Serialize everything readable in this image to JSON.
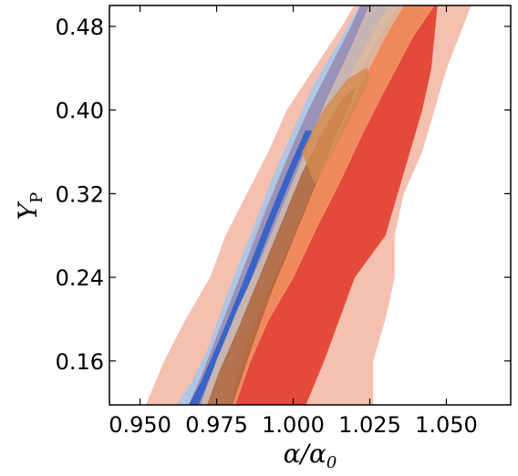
{
  "chart_data": {
    "type": "contour",
    "xlabel": "α/α",
    "xlabel_sub": "0",
    "ylabel": "Y",
    "ylabel_sub": "P",
    "xlim": [
      0.94,
      1.071
    ],
    "ylim": [
      0.118,
      0.5
    ],
    "xticks": [
      0.95,
      0.975,
      1.0,
      1.025,
      1.05
    ],
    "xtick_labels": [
      "0.950",
      "0.975",
      "1.000",
      "1.025",
      "1.050"
    ],
    "yticks": [
      0.16,
      0.24,
      0.32,
      0.4,
      0.48
    ],
    "ytick_labels": [
      "0.16",
      "0.24",
      "0.32",
      "0.40",
      "0.48"
    ],
    "grid": false,
    "series": [
      {
        "color": "#f6c0b0",
        "opacity": 1,
        "polygon": [
          [
            0.952,
            0.118
          ],
          [
            0.958,
            0.16
          ],
          [
            0.965,
            0.2
          ],
          [
            0.973,
            0.24
          ],
          [
            0.978,
            0.28
          ],
          [
            0.985,
            0.32
          ],
          [
            0.992,
            0.36
          ],
          [
            0.998,
            0.4
          ],
          [
            1.007,
            0.44
          ],
          [
            1.016,
            0.48
          ],
          [
            1.02,
            0.5
          ],
          [
            1.058,
            0.5
          ],
          [
            1.054,
            0.47
          ],
          [
            1.05,
            0.44
          ],
          [
            1.046,
            0.4
          ],
          [
            1.042,
            0.36
          ],
          [
            1.036,
            0.32
          ],
          [
            1.033,
            0.28
          ],
          [
            1.033,
            0.24
          ],
          [
            1.03,
            0.2
          ],
          [
            1.026,
            0.16
          ],
          [
            1.026,
            0.118
          ]
        ]
      },
      {
        "color": "#e44a3b",
        "opacity": 1,
        "polygon": [
          [
            0.98,
            0.118
          ],
          [
            0.981,
            0.16
          ],
          [
            0.982,
            0.2
          ],
          [
            0.984,
            0.24
          ],
          [
            0.987,
            0.28
          ],
          [
            0.993,
            0.32
          ],
          [
            0.999,
            0.36
          ],
          [
            1.006,
            0.4
          ],
          [
            1.014,
            0.44
          ],
          [
            1.022,
            0.47
          ],
          [
            1.028,
            0.5
          ],
          [
            1.047,
            0.5
          ],
          [
            1.046,
            0.47
          ],
          [
            1.045,
            0.44
          ],
          [
            1.042,
            0.4
          ],
          [
            1.038,
            0.36
          ],
          [
            1.034,
            0.32
          ],
          [
            1.03,
            0.28
          ],
          [
            1.02,
            0.24
          ],
          [
            1.015,
            0.2
          ],
          [
            1.01,
            0.16
          ],
          [
            1.004,
            0.118
          ]
        ]
      },
      {
        "color": "#aac7e6",
        "opacity": 0.92,
        "polygon": [
          [
            0.962,
            0.118
          ],
          [
            0.967,
            0.14
          ],
          [
            0.972,
            0.17
          ],
          [
            0.978,
            0.22
          ],
          [
            0.986,
            0.28
          ],
          [
            0.994,
            0.34
          ],
          [
            1.0,
            0.38
          ],
          [
            1.006,
            0.42
          ],
          [
            1.014,
            0.46
          ],
          [
            1.022,
            0.5
          ],
          [
            1.034,
            0.5
          ],
          [
            1.026,
            0.46
          ],
          [
            1.018,
            0.42
          ],
          [
            1.009,
            0.38
          ],
          [
            1.001,
            0.32
          ],
          [
            0.994,
            0.26
          ],
          [
            0.986,
            0.21
          ],
          [
            0.978,
            0.16
          ],
          [
            0.972,
            0.118
          ]
        ]
      },
      {
        "color": "#9a8fb8",
        "opacity": 0.95,
        "polygon": [
          [
            0.966,
            0.118
          ],
          [
            0.97,
            0.145
          ],
          [
            0.976,
            0.19
          ],
          [
            0.984,
            0.25
          ],
          [
            0.992,
            0.31
          ],
          [
            0.999,
            0.36
          ],
          [
            1.005,
            0.4
          ],
          [
            1.012,
            0.44
          ],
          [
            1.019,
            0.48
          ],
          [
            1.022,
            0.5
          ],
          [
            1.031,
            0.5
          ],
          [
            1.024,
            0.46
          ],
          [
            1.016,
            0.42
          ],
          [
            1.008,
            0.38
          ],
          [
            1.001,
            0.33
          ],
          [
            0.994,
            0.27
          ],
          [
            0.987,
            0.22
          ],
          [
            0.98,
            0.17
          ],
          [
            0.974,
            0.118
          ]
        ]
      },
      {
        "color": "#3a63c6",
        "opacity": 1,
        "polygon": [
          [
            0.966,
            0.118
          ],
          [
            0.97,
            0.14
          ],
          [
            0.976,
            0.18
          ],
          [
            0.983,
            0.23
          ],
          [
            0.991,
            0.29
          ],
          [
            0.998,
            0.34
          ],
          [
            1.004,
            0.38
          ],
          [
            1.006,
            0.38
          ],
          [
            1.0,
            0.34
          ],
          [
            0.993,
            0.29
          ],
          [
            0.985,
            0.23
          ],
          [
            0.978,
            0.18
          ],
          [
            0.972,
            0.14
          ],
          [
            0.969,
            0.118
          ]
        ]
      },
      {
        "color": "#f3a469",
        "opacity": 0.7,
        "polygon": [
          [
            0.972,
            0.118
          ],
          [
            0.977,
            0.15
          ],
          [
            0.984,
            0.2
          ],
          [
            0.991,
            0.25
          ],
          [
            0.999,
            0.3
          ],
          [
            1.006,
            0.35
          ],
          [
            1.013,
            0.4
          ],
          [
            1.02,
            0.44
          ],
          [
            1.027,
            0.48
          ],
          [
            1.032,
            0.5
          ],
          [
            1.046,
            0.5
          ],
          [
            1.039,
            0.47
          ],
          [
            1.03,
            0.42
          ],
          [
            1.023,
            0.38
          ],
          [
            1.015,
            0.33
          ],
          [
            1.008,
            0.29
          ],
          [
            1.0,
            0.24
          ],
          [
            0.992,
            0.2
          ],
          [
            0.986,
            0.16
          ],
          [
            0.981,
            0.118
          ]
        ]
      },
      {
        "color": "#d7bfae",
        "opacity": 0.75,
        "polygon": [
          [
            0.97,
            0.118
          ],
          [
            0.975,
            0.16
          ],
          [
            0.982,
            0.21
          ],
          [
            0.99,
            0.26
          ],
          [
            0.997,
            0.31
          ],
          [
            1.004,
            0.36
          ],
          [
            1.011,
            0.41
          ],
          [
            1.019,
            0.46
          ],
          [
            1.025,
            0.5
          ],
          [
            1.036,
            0.5
          ],
          [
            1.03,
            0.47
          ],
          [
            1.023,
            0.43
          ],
          [
            1.015,
            0.38
          ],
          [
            1.007,
            0.33
          ],
          [
            1.0,
            0.28
          ],
          [
            0.992,
            0.23
          ],
          [
            0.985,
            0.18
          ],
          [
            0.979,
            0.118
          ]
        ]
      },
      {
        "color": "#a9643c",
        "opacity": 0.82,
        "polygon": [
          [
            0.972,
            0.118
          ],
          [
            0.976,
            0.15
          ],
          [
            0.982,
            0.19
          ],
          [
            0.989,
            0.24
          ],
          [
            0.996,
            0.29
          ],
          [
            1.003,
            0.34
          ],
          [
            1.01,
            0.38
          ],
          [
            1.016,
            0.41
          ],
          [
            1.02,
            0.42
          ],
          [
            1.019,
            0.41
          ],
          [
            1.013,
            0.37
          ],
          [
            1.006,
            0.32
          ],
          [
            0.999,
            0.27
          ],
          [
            0.992,
            0.22
          ],
          [
            0.986,
            0.17
          ],
          [
            0.98,
            0.118
          ]
        ]
      },
      {
        "color": "#d38b4d",
        "opacity": 0.8,
        "polygon": [
          [
            1.003,
            0.36
          ],
          [
            1.01,
            0.4
          ],
          [
            1.018,
            0.43
          ],
          [
            1.024,
            0.44
          ],
          [
            1.025,
            0.43
          ],
          [
            1.02,
            0.4
          ],
          [
            1.013,
            0.36
          ],
          [
            1.007,
            0.33
          ]
        ]
      }
    ]
  }
}
